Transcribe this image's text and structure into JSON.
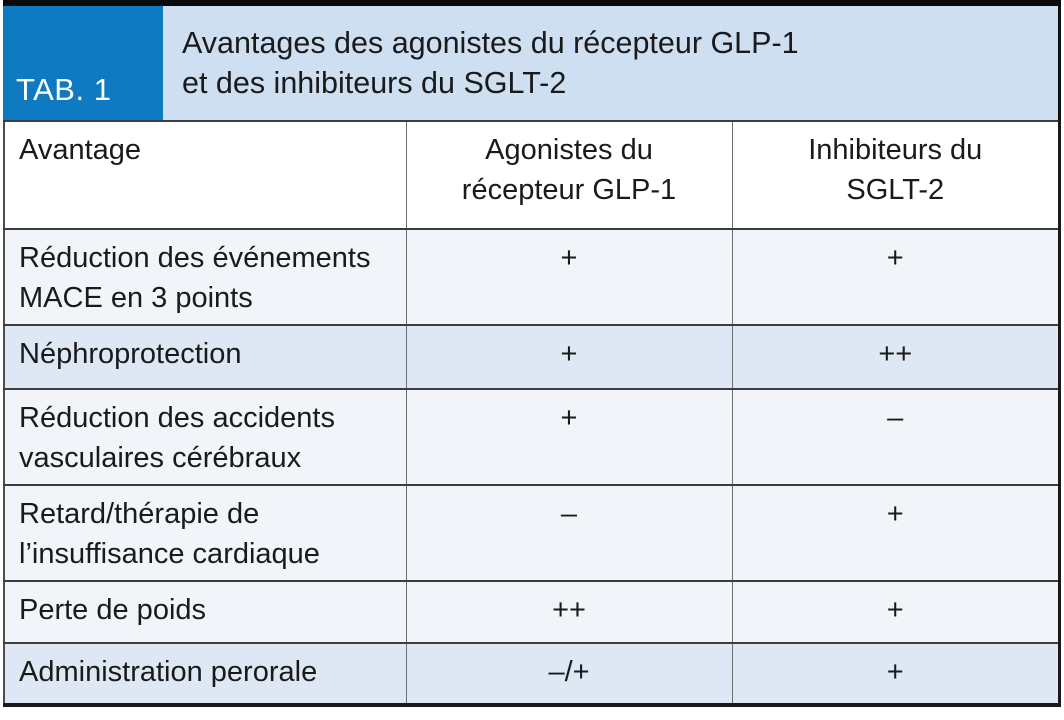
{
  "tag": {
    "label": "TAB. 1"
  },
  "title": "Avantages des agonistes du récepteur GLP-1\net des inhibiteurs du SGLT-2",
  "colors": {
    "tag_blue": "#0d7ac1",
    "title_band_blue": "#cfdff2",
    "row_light": "#f1f5fa",
    "row_shaded": "#dee8f5",
    "text": "#1a1a1a"
  },
  "table": {
    "columns": {
      "advantage": "Avantage",
      "glp1": "Agonistes du\nrécepteur GLP-1",
      "sglt2": "Inhibiteurs du\nSGLT-2"
    },
    "rows": [
      {
        "label": "Réduction des événements\nMACE en 3 points",
        "glp1": "+",
        "sglt2": "+"
      },
      {
        "label": "Néphroprotection",
        "glp1": "+",
        "sglt2": "++"
      },
      {
        "label": "Réduction des accidents\nvasculaires cérébraux",
        "glp1": "+",
        "sglt2": "–"
      },
      {
        "label": "Retard/thérapie de\nl’insuffisance cardiaque",
        "glp1": "–",
        "sglt2": "+"
      },
      {
        "label": "Perte de poids",
        "glp1": "++",
        "sglt2": "+"
      },
      {
        "label": "Administration perorale",
        "glp1": "–/+",
        "sglt2": "+"
      }
    ]
  }
}
